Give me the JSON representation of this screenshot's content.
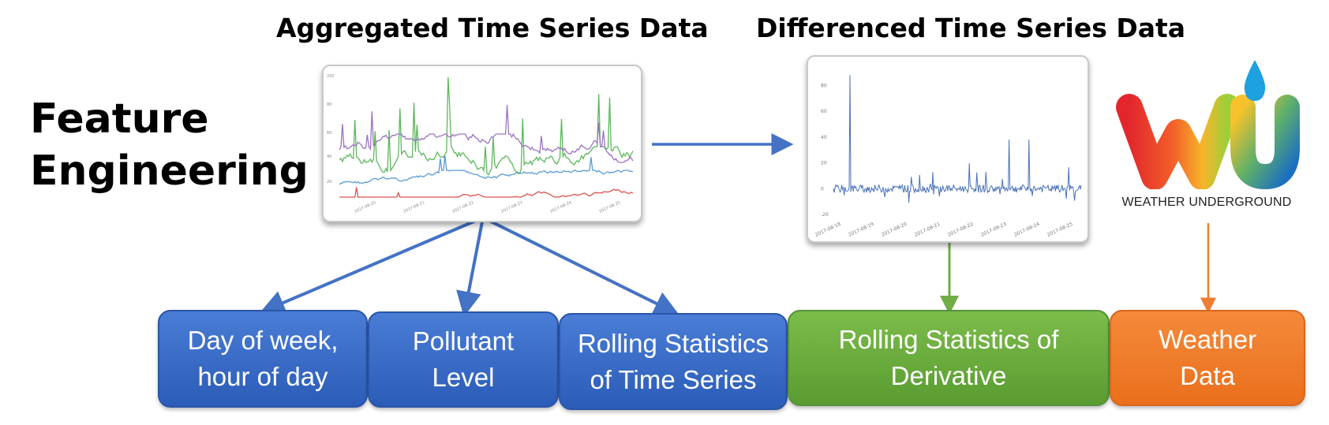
{
  "title": {
    "line1": "Feature",
    "line2": "Engineering"
  },
  "headings": {
    "aggregated": "Aggregated Time Series Data",
    "differenced": "Differenced Time Series Data"
  },
  "boxes": [
    {
      "line1": "Day of week,",
      "line2": "hour of day"
    },
    {
      "line1": "Pollutant",
      "line2": "Level"
    },
    {
      "line1": "Rolling Statistics",
      "line2": "of Time Series"
    },
    {
      "line1": "Rolling Statistics of",
      "line2": "Derivative"
    },
    {
      "line1": "Weather",
      "line2": "Data"
    }
  ],
  "logo": {
    "text": "WEATHER UNDERGROUND"
  },
  "colors": {
    "blue": "#4472c4",
    "green": "#70ad47",
    "orange": "#ed7d31"
  },
  "chart_data": [
    {
      "type": "line",
      "x_tick_labels": [
        "2017-08-20",
        "2017-08-21",
        "2017-08-22",
        "2017-08-23",
        "2017-08-24",
        "2017-08-25"
      ],
      "y_tick_labels": [
        "200",
        "80",
        "60",
        "40",
        "20"
      ],
      "series": [
        {
          "color": "#5b9bd5"
        },
        {
          "color": "#d9534f"
        },
        {
          "color": "#5cb85c"
        },
        {
          "color": "#9b72c4"
        }
      ]
    },
    {
      "type": "line",
      "x_tick_labels": [
        "2017-08-18",
        "2017-08-19",
        "2017-08-20",
        "2017-08-21",
        "2017-08-22",
        "2017-08-23",
        "2017-08-24",
        "2017-08-25"
      ],
      "y_tick_labels": [
        "80",
        "60",
        "40",
        "20",
        "0",
        "-20"
      ],
      "ylim": [
        -20,
        90
      ],
      "series": [
        {
          "color": "#4a72b8"
        }
      ]
    }
  ]
}
